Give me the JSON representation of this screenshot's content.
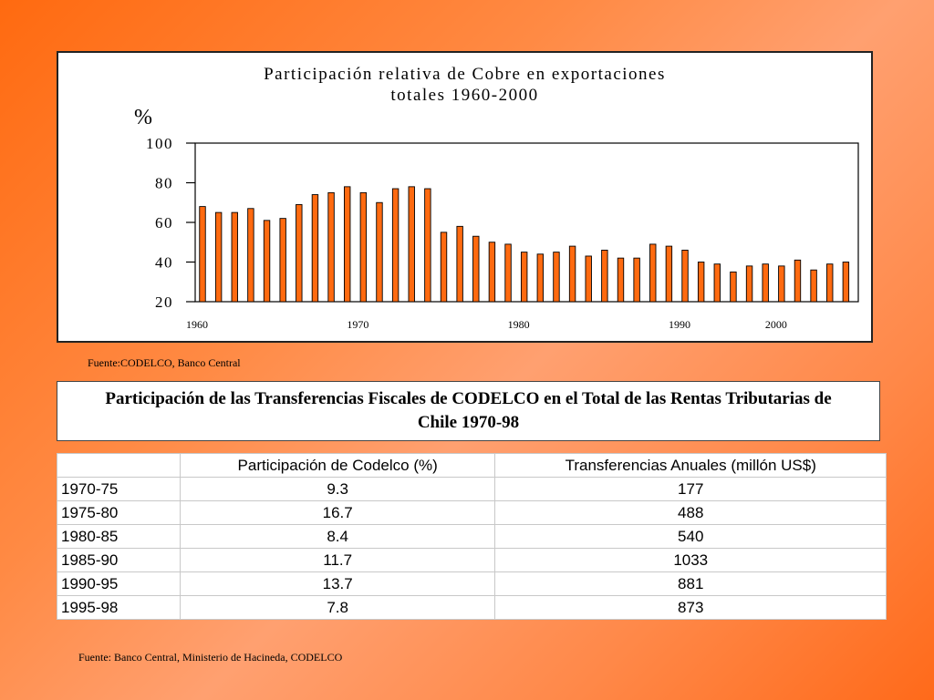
{
  "chart_data": {
    "type": "bar",
    "title": "Participación relativa de Cobre en exportaciones totales 1960-2000",
    "title_lines": [
      "Participación relativa de Cobre en exportaciones",
      "totales 1960-2000"
    ],
    "ylabel": "%",
    "xlabel": "",
    "ylim": [
      20,
      100
    ],
    "yticks": [
      100,
      80,
      60,
      40,
      20
    ],
    "x_tick_labels": [
      {
        "label": "1960",
        "at_bar": 0
      },
      {
        "label": "1970",
        "at_bar": 10
      },
      {
        "label": "1980",
        "at_bar": 20
      },
      {
        "label": "1990",
        "at_bar": 30
      },
      {
        "label": "2000",
        "at_bar": 36
      }
    ],
    "grid": false,
    "bar_color": "#ff6a10",
    "values": [
      68,
      65,
      65,
      67,
      61,
      62,
      69,
      74,
      75,
      78,
      75,
      70,
      77,
      78,
      77,
      55,
      58,
      53,
      50,
      49,
      45,
      44,
      45,
      48,
      43,
      46,
      42,
      42,
      49,
      48,
      46,
      40,
      39,
      35,
      38,
      39,
      38,
      41,
      36,
      39,
      40
    ]
  },
  "sources": {
    "chart": "Fuente:CODELCO, Banco Central",
    "table": "Fuente: Banco Central, Ministerio de Hacineda, CODELCO"
  },
  "table": {
    "title": "Participación de las Transferencias Fiscales de CODELCO en el Total de las Rentas Tributarias de Chile 1970-98",
    "headers": [
      "",
      "Participación de Codelco  (%)",
      "Transferencias Anuales  (millón US$)"
    ],
    "rows": [
      [
        "1970-75",
        "9.3",
        "177"
      ],
      [
        "1975-80",
        "16.7",
        "488"
      ],
      [
        "1980-85",
        "8.4",
        "540"
      ],
      [
        "1985-90",
        "11.7",
        "1033"
      ],
      [
        "1990-95",
        "13.7",
        "881"
      ],
      [
        "1995-98",
        "7.8",
        "873"
      ]
    ]
  }
}
